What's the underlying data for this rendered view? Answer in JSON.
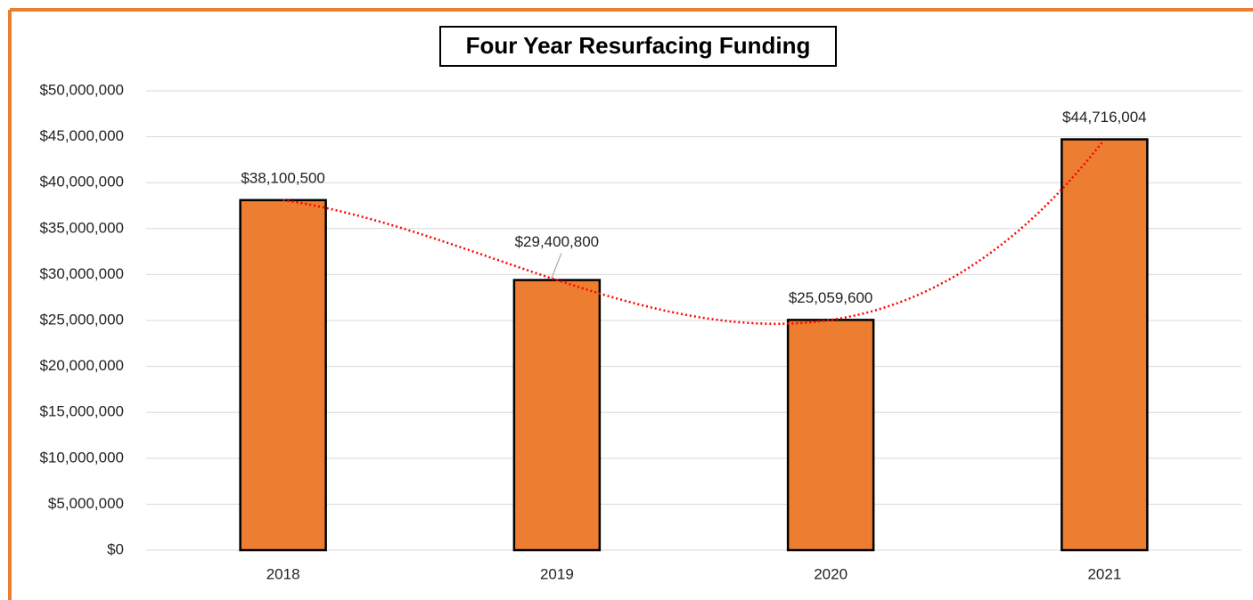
{
  "chart_data": {
    "type": "bar",
    "title": "Four Year Resurfacing Funding",
    "categories": [
      "2018",
      "2019",
      "2020",
      "2021"
    ],
    "values": [
      38100500,
      29400800,
      25059600,
      44716004
    ],
    "value_labels": [
      "$38,100,500",
      "$29,400,800",
      "$25,059,600",
      "$44,716,004"
    ],
    "color": "#ed7d31",
    "ylim": [
      0,
      50000000
    ],
    "yticks": [
      {
        "value": 0,
        "label": "$0"
      },
      {
        "value": 5000000,
        "label": "$5,000,000"
      },
      {
        "value": 10000000,
        "label": "$10,000,000"
      },
      {
        "value": 15000000,
        "label": "$15,000,000"
      },
      {
        "value": 20000000,
        "label": "$20,000,000"
      },
      {
        "value": 25000000,
        "label": "$25,000,000"
      },
      {
        "value": 30000000,
        "label": "$30,000,000"
      },
      {
        "value": 35000000,
        "label": "$35,000,000"
      },
      {
        "value": 40000000,
        "label": "$40,000,000"
      },
      {
        "value": 45000000,
        "label": "$45,000,000"
      },
      {
        "value": 50000000,
        "label": "$50,000,000"
      }
    ],
    "grid": true,
    "trendline": "polynomial",
    "trendline_color": "#ff0000"
  }
}
